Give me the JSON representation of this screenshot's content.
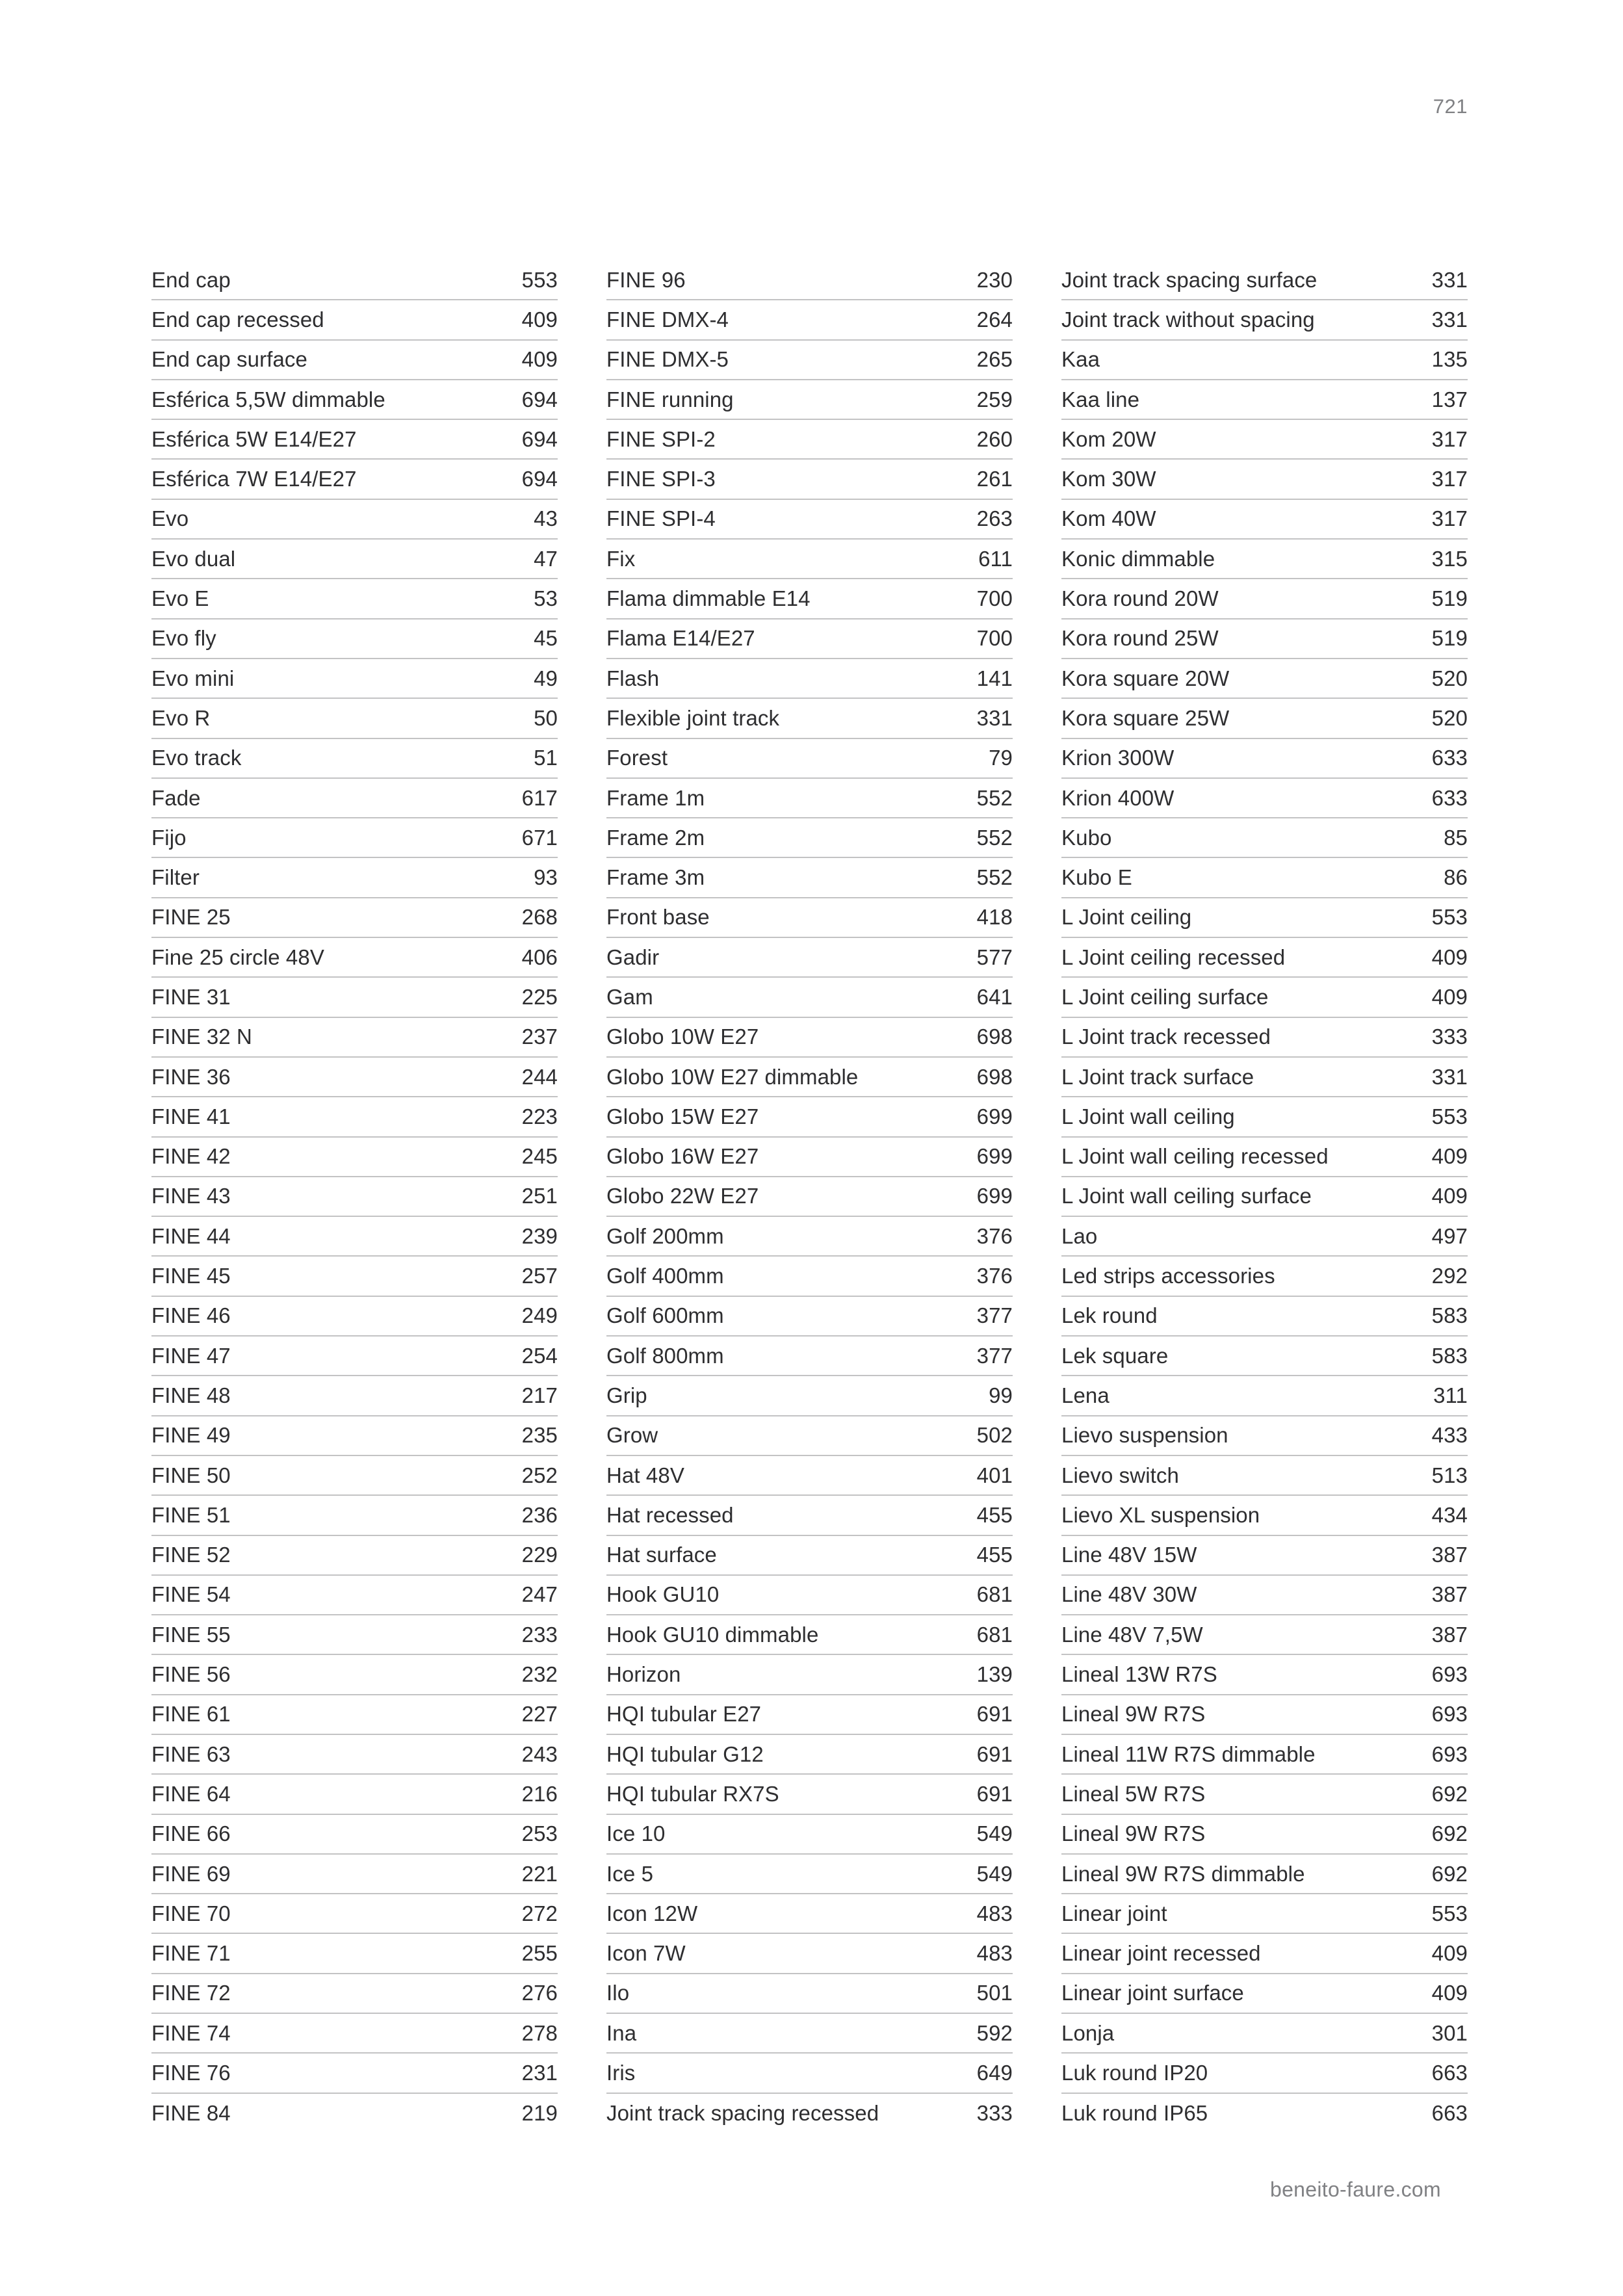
{
  "page": {
    "number": "721",
    "footer": "beneito-faure.com"
  },
  "colors": {
    "text": "#2e2e30",
    "muted": "#808184",
    "divider": "#c3c3c4",
    "background": "#ffffff"
  },
  "index": {
    "columns": [
      {
        "entries": [
          {
            "label": "End cap",
            "page": "553"
          },
          {
            "label": "End cap recessed",
            "page": "409"
          },
          {
            "label": "End cap surface",
            "page": "409"
          },
          {
            "label": "Esférica 5,5W dimmable",
            "page": "694"
          },
          {
            "label": "Esférica 5W E14/E27",
            "page": "694"
          },
          {
            "label": "Esférica 7W E14/E27",
            "page": "694"
          },
          {
            "label": "Evo",
            "page": "43"
          },
          {
            "label": "Evo dual",
            "page": "47"
          },
          {
            "label": "Evo E",
            "page": "53"
          },
          {
            "label": "Evo fly",
            "page": "45"
          },
          {
            "label": "Evo mini",
            "page": "49"
          },
          {
            "label": "Evo R",
            "page": "50"
          },
          {
            "label": "Evo track",
            "page": "51"
          },
          {
            "label": "Fade",
            "page": "617"
          },
          {
            "label": "Fijo",
            "page": "671"
          },
          {
            "label": "Filter",
            "page": "93"
          },
          {
            "label": "FINE 25",
            "page": "268"
          },
          {
            "label": "Fine 25 circle 48V",
            "page": "406"
          },
          {
            "label": "FINE 31",
            "page": "225"
          },
          {
            "label": "FINE 32 N",
            "page": "237"
          },
          {
            "label": "FINE 36",
            "page": "244"
          },
          {
            "label": "FINE 41",
            "page": "223"
          },
          {
            "label": "FINE 42",
            "page": "245"
          },
          {
            "label": "FINE 43",
            "page": "251"
          },
          {
            "label": "FINE 44",
            "page": "239"
          },
          {
            "label": "FINE 45",
            "page": "257"
          },
          {
            "label": "FINE 46",
            "page": "249"
          },
          {
            "label": "FINE 47",
            "page": "254"
          },
          {
            "label": "FINE 48",
            "page": "217"
          },
          {
            "label": "FINE 49",
            "page": "235"
          },
          {
            "label": "FINE 50",
            "page": "252"
          },
          {
            "label": "FINE 51",
            "page": "236"
          },
          {
            "label": "FINE 52",
            "page": "229"
          },
          {
            "label": "FINE 54",
            "page": "247"
          },
          {
            "label": "FINE 55",
            "page": "233"
          },
          {
            "label": "FINE 56",
            "page": "232"
          },
          {
            "label": "FINE 61",
            "page": "227"
          },
          {
            "label": "FINE 63",
            "page": "243"
          },
          {
            "label": "FINE 64",
            "page": "216"
          },
          {
            "label": "FINE 66",
            "page": "253"
          },
          {
            "label": "FINE 69",
            "page": "221"
          },
          {
            "label": "FINE 70",
            "page": "272"
          },
          {
            "label": "FINE 71",
            "page": "255"
          },
          {
            "label": "FINE 72",
            "page": "276"
          },
          {
            "label": "FINE 74",
            "page": "278"
          },
          {
            "label": "FINE 76",
            "page": "231"
          },
          {
            "label": "FINE 84",
            "page": "219"
          }
        ]
      },
      {
        "entries": [
          {
            "label": "FINE 96",
            "page": "230"
          },
          {
            "label": "FINE DMX-4",
            "page": "264"
          },
          {
            "label": "FINE DMX-5",
            "page": "265"
          },
          {
            "label": "FINE running",
            "page": "259"
          },
          {
            "label": "FINE SPI-2",
            "page": "260"
          },
          {
            "label": "FINE SPI-3",
            "page": "261"
          },
          {
            "label": "FINE SPI-4",
            "page": "263"
          },
          {
            "label": "Fix",
            "page": "611"
          },
          {
            "label": "Flama dimmable E14",
            "page": "700"
          },
          {
            "label": "Flama E14/E27",
            "page": "700"
          },
          {
            "label": "Flash",
            "page": "141"
          },
          {
            "label": "Flexible joint track",
            "page": "331"
          },
          {
            "label": "Forest",
            "page": "79"
          },
          {
            "label": "Frame 1m",
            "page": "552"
          },
          {
            "label": "Frame 2m",
            "page": "552"
          },
          {
            "label": "Frame 3m",
            "page": "552"
          },
          {
            "label": "Front base",
            "page": "418"
          },
          {
            "label": "Gadir",
            "page": "577"
          },
          {
            "label": "Gam",
            "page": "641"
          },
          {
            "label": "Globo 10W E27",
            "page": "698"
          },
          {
            "label": "Globo 10W E27 dimmable",
            "page": "698"
          },
          {
            "label": "Globo 15W E27",
            "page": "699"
          },
          {
            "label": "Globo 16W E27",
            "page": "699"
          },
          {
            "label": "Globo 22W E27",
            "page": "699"
          },
          {
            "label": "Golf 200mm",
            "page": "376"
          },
          {
            "label": "Golf 400mm",
            "page": "376"
          },
          {
            "label": "Golf 600mm",
            "page": "377"
          },
          {
            "label": "Golf 800mm",
            "page": "377"
          },
          {
            "label": "Grip",
            "page": "99"
          },
          {
            "label": "Grow",
            "page": "502"
          },
          {
            "label": "Hat 48V",
            "page": "401"
          },
          {
            "label": "Hat recessed",
            "page": "455"
          },
          {
            "label": "Hat surface",
            "page": "455"
          },
          {
            "label": "Hook GU10",
            "page": "681"
          },
          {
            "label": "Hook GU10 dimmable",
            "page": "681"
          },
          {
            "label": "Horizon",
            "page": "139"
          },
          {
            "label": "HQI tubular E27",
            "page": "691"
          },
          {
            "label": "HQI tubular G12",
            "page": "691"
          },
          {
            "label": "HQI tubular RX7S",
            "page": "691"
          },
          {
            "label": "Ice 10",
            "page": "549"
          },
          {
            "label": "Ice 5",
            "page": "549"
          },
          {
            "label": "Icon 12W",
            "page": "483"
          },
          {
            "label": "Icon 7W",
            "page": "483"
          },
          {
            "label": "Ilo",
            "page": "501"
          },
          {
            "label": "Ina",
            "page": "592"
          },
          {
            "label": "Iris",
            "page": "649"
          },
          {
            "label": "Joint track spacing recessed",
            "page": "333"
          }
        ]
      },
      {
        "entries": [
          {
            "label": "Joint track spacing surface",
            "page": "331"
          },
          {
            "label": "Joint track without spacing",
            "page": "331"
          },
          {
            "label": "Kaa",
            "page": "135"
          },
          {
            "label": "Kaa line",
            "page": "137"
          },
          {
            "label": "Kom 20W",
            "page": "317"
          },
          {
            "label": "Kom 30W",
            "page": "317"
          },
          {
            "label": "Kom 40W",
            "page": "317"
          },
          {
            "label": "Konic dimmable",
            "page": "315"
          },
          {
            "label": "Kora round 20W",
            "page": "519"
          },
          {
            "label": "Kora round 25W",
            "page": "519"
          },
          {
            "label": "Kora square 20W",
            "page": "520"
          },
          {
            "label": "Kora square 25W",
            "page": "520"
          },
          {
            "label": "Krion 300W",
            "page": "633"
          },
          {
            "label": "Krion 400W",
            "page": "633"
          },
          {
            "label": "Kubo",
            "page": "85"
          },
          {
            "label": "Kubo E",
            "page": "86"
          },
          {
            "label": "L Joint ceiling",
            "page": "553"
          },
          {
            "label": "L Joint ceiling recessed",
            "page": "409"
          },
          {
            "label": "L Joint ceiling surface",
            "page": "409"
          },
          {
            "label": "L Joint track recessed",
            "page": "333"
          },
          {
            "label": "L Joint track surface",
            "page": "331"
          },
          {
            "label": "L Joint wall ceiling",
            "page": "553"
          },
          {
            "label": "L Joint wall ceiling recessed",
            "page": "409"
          },
          {
            "label": "L Joint wall ceiling surface",
            "page": "409"
          },
          {
            "label": "Lao",
            "page": "497"
          },
          {
            "label": "Led strips accessories",
            "page": "292"
          },
          {
            "label": "Lek round",
            "page": "583"
          },
          {
            "label": "Lek square",
            "page": "583"
          },
          {
            "label": "Lena",
            "page": "311"
          },
          {
            "label": "Lievo suspension",
            "page": "433"
          },
          {
            "label": "Lievo switch",
            "page": "513"
          },
          {
            "label": "Lievo XL suspension",
            "page": "434"
          },
          {
            "label": "Line 48V 15W",
            "page": "387"
          },
          {
            "label": "Line 48V 30W",
            "page": "387"
          },
          {
            "label": "Line 48V 7,5W",
            "page": "387"
          },
          {
            "label": "Lineal 13W R7S",
            "page": "693"
          },
          {
            "label": "Lineal 9W R7S",
            "page": "693"
          },
          {
            "label": "Lineal 11W R7S dimmable",
            "page": "693"
          },
          {
            "label": "Lineal 5W R7S",
            "page": "692"
          },
          {
            "label": "Lineal 9W R7S",
            "page": "692"
          },
          {
            "label": "Lineal 9W R7S dimmable",
            "page": "692"
          },
          {
            "label": "Linear joint",
            "page": "553"
          },
          {
            "label": "Linear joint recessed",
            "page": "409"
          },
          {
            "label": "Linear joint surface",
            "page": "409"
          },
          {
            "label": "Lonja",
            "page": "301"
          },
          {
            "label": "Luk round IP20",
            "page": "663"
          },
          {
            "label": "Luk round IP65",
            "page": "663"
          }
        ]
      }
    ]
  }
}
